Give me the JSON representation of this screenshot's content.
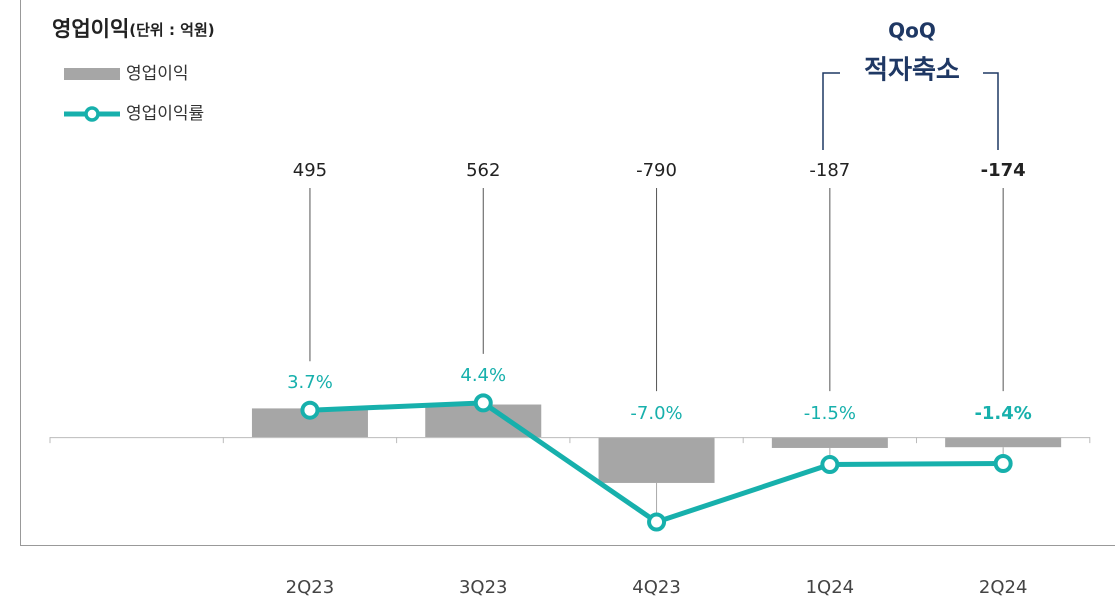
{
  "chart_data": {
    "type": "bar_line",
    "title": "영업이익",
    "subtitle": "(단위 : 억원)",
    "categories": [
      "2Q23",
      "3Q23",
      "4Q23",
      "1Q24",
      "2Q24"
    ],
    "series": [
      {
        "name": "영업이익",
        "type": "bar",
        "color": "#a6a6a6",
        "values": [
          495,
          562,
          -790,
          -187,
          -174
        ]
      },
      {
        "name": "영업이익률",
        "type": "line",
        "axis": "y2",
        "color": "#17b0ac",
        "values": [
          3.7,
          4.4,
          -7.0,
          -1.5,
          -1.4
        ],
        "value_labels": [
          "3.7%",
          "4.4%",
          "-7.0%",
          "-1.5%",
          "-1.4%"
        ]
      }
    ],
    "ylim": [
      -1860,
      4950
    ],
    "y2lim": [
      -9.2,
      28.6
    ],
    "annotations": [
      "QoQ",
      "적자축소"
    ]
  }
}
